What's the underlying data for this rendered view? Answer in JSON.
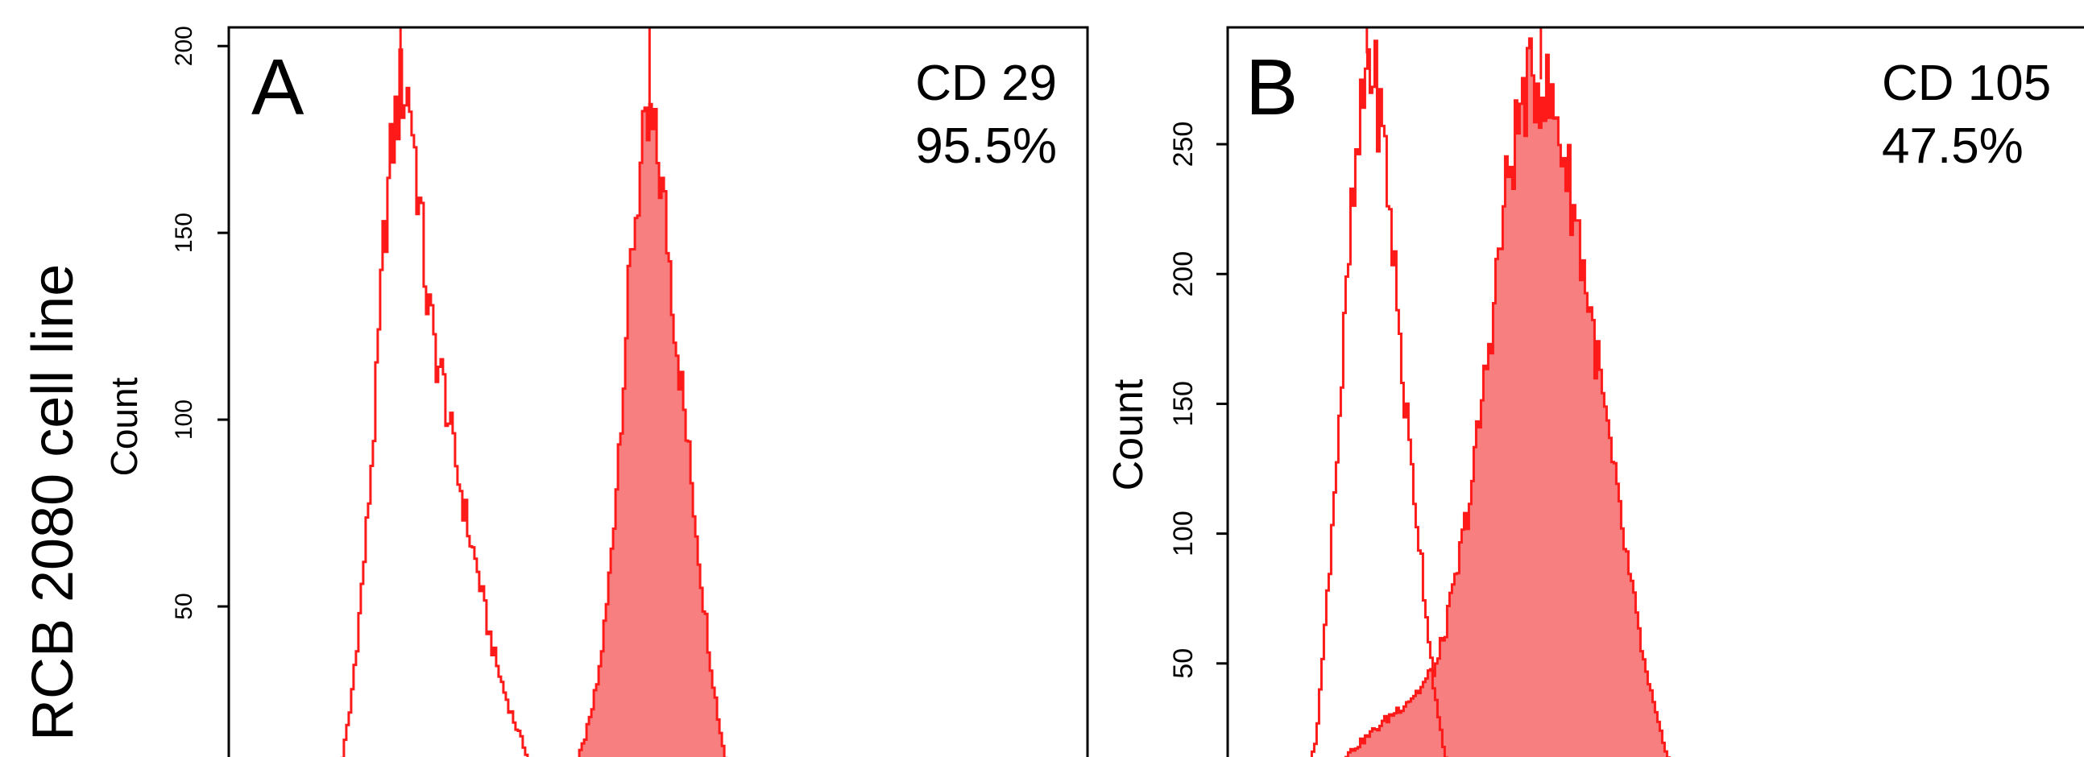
{
  "figure": {
    "row_label": "RCB 2080 cell line"
  },
  "colors": {
    "histogram_line": "#ff1a1a",
    "histogram_fill": "#f77f7f",
    "frame": "#000000"
  },
  "chart_data": [
    {
      "type": "area",
      "panel_label": "A",
      "annotation": [
        "CD 29",
        "95.5%"
      ],
      "xlabel": "",
      "ylabel": "Count",
      "ylim": [
        0,
        205
      ],
      "yticks": [
        50,
        100,
        150,
        200
      ],
      "grid": false,
      "series": [
        {
          "role": "control",
          "filled": false,
          "x": [
            0.12,
            0.13,
            0.14,
            0.15,
            0.16,
            0.17,
            0.18,
            0.19,
            0.2,
            0.21,
            0.22,
            0.23,
            0.24,
            0.25,
            0.26,
            0.27,
            0.28,
            0.29,
            0.3,
            0.31,
            0.32,
            0.33,
            0.34,
            0.35,
            0.36,
            0.37,
            0.38,
            0.39,
            0.4,
            0.41,
            0.42,
            0.43,
            0.44
          ],
          "values": [
            0,
            8,
            22,
            45,
            72,
            105,
            150,
            175,
            190,
            186,
            160,
            132,
            118,
            108,
            92,
            80,
            68,
            58,
            45,
            35,
            27,
            20,
            14,
            8,
            4,
            1,
            0,
            0,
            0,
            0,
            0,
            0,
            0
          ]
        },
        {
          "role": "marker",
          "filled": true,
          "x": [
            0.38,
            0.39,
            0.4,
            0.41,
            0.42,
            0.43,
            0.44,
            0.45,
            0.46,
            0.47,
            0.48,
            0.49,
            0.5,
            0.51,
            0.52,
            0.53,
            0.54,
            0.55,
            0.56,
            0.57,
            0.58,
            0.59,
            0.6,
            0.61,
            0.62,
            0.63
          ],
          "values": [
            0,
            2,
            6,
            12,
            20,
            32,
            52,
            82,
            118,
            150,
            170,
            178,
            168,
            148,
            122,
            100,
            78,
            55,
            35,
            18,
            6,
            0,
            0,
            0,
            0,
            0
          ]
        }
      ]
    },
    {
      "type": "area",
      "panel_label": "B",
      "annotation": [
        "CD 105",
        "47.5%"
      ],
      "xlabel": "",
      "ylabel": "Count",
      "ylim": [
        0,
        295
      ],
      "yticks": [
        50,
        100,
        150,
        200,
        250
      ],
      "grid": false,
      "series": [
        {
          "role": "control",
          "filled": false,
          "x": [
            0.08,
            0.09,
            0.1,
            0.11,
            0.12,
            0.13,
            0.14,
            0.15,
            0.16,
            0.17,
            0.18,
            0.19,
            0.2,
            0.21,
            0.22,
            0.23,
            0.24,
            0.25,
            0.26,
            0.27,
            0.28,
            0.29,
            0.3,
            0.31,
            0.32
          ],
          "values": [
            0,
            5,
            20,
            60,
            110,
            160,
            215,
            250,
            285,
            270,
            245,
            205,
            160,
            125,
            95,
            60,
            30,
            12,
            5,
            2,
            0,
            0,
            0,
            0,
            0
          ]
        },
        {
          "role": "marker",
          "filled": true,
          "x": [
            0.08,
            0.1,
            0.12,
            0.14,
            0.16,
            0.18,
            0.2,
            0.22,
            0.24,
            0.26,
            0.28,
            0.3,
            0.32,
            0.34,
            0.36,
            0.38,
            0.4,
            0.42,
            0.44,
            0.46,
            0.48,
            0.5,
            0.52,
            0.54
          ],
          "values": [
            0,
            4,
            10,
            16,
            22,
            28,
            34,
            40,
            50,
            80,
            120,
            175,
            235,
            270,
            275,
            255,
            220,
            175,
            128,
            85,
            45,
            18,
            5,
            0
          ]
        }
      ]
    }
  ]
}
